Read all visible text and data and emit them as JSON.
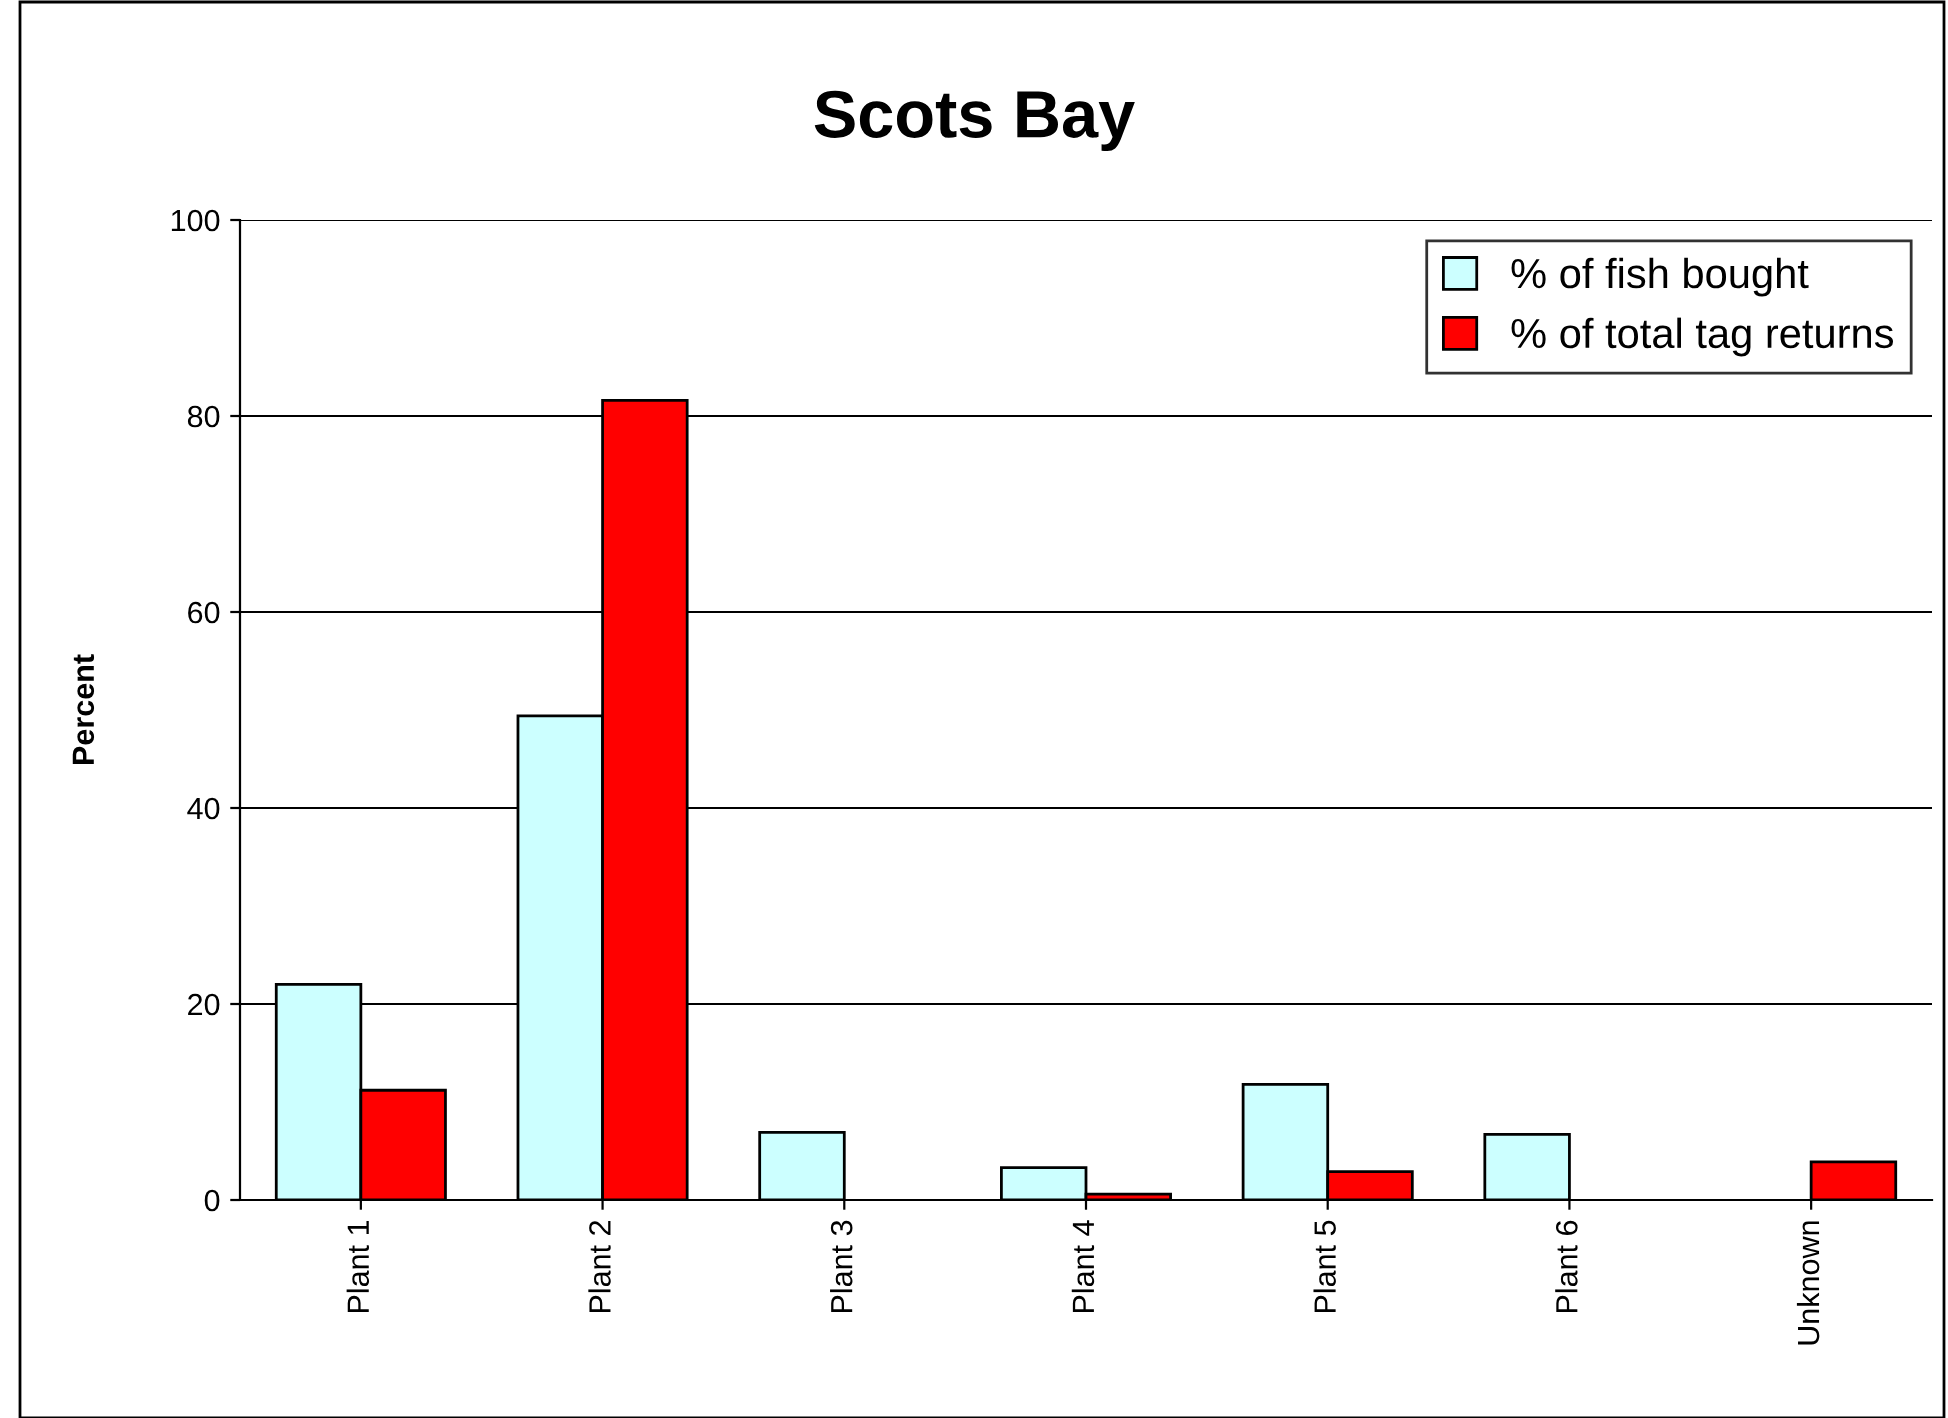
{
  "chart_data": {
    "type": "bar",
    "title": "Scots Bay",
    "ylabel": "Percent",
    "categories": [
      "Plant 1",
      "Plant 2",
      "Plant 3",
      "Plant 4",
      "Plant 5",
      "Plant 6",
      "Unknown"
    ],
    "series": [
      {
        "name": "% of fish bought",
        "color": "#ccffff",
        "values": [
          22.0,
          49.4,
          6.9,
          3.3,
          11.8,
          6.7,
          0
        ]
      },
      {
        "name": "% of total tag returns",
        "color": "#ff0000",
        "values": [
          11.2,
          81.6,
          0,
          0.6,
          2.9,
          0,
          3.9
        ]
      }
    ],
    "ylim": [
      0,
      100
    ],
    "yticks": [
      0,
      20,
      40,
      60,
      80,
      100
    ],
    "grid": "y",
    "legend": "top right"
  }
}
